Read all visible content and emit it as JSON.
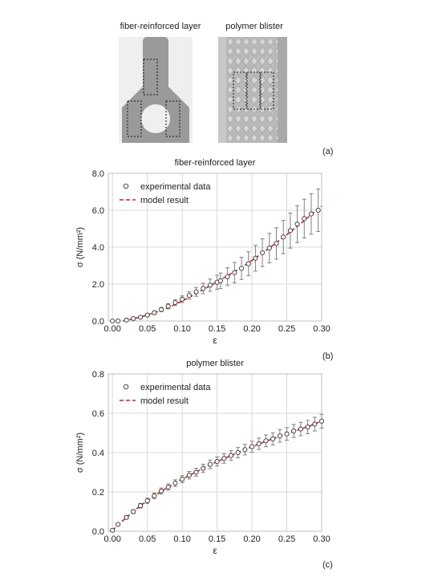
{
  "figure": {
    "image_a_left_title": "fiber-reinforced layer",
    "image_a_right_title": "polymer blister",
    "label_a": "(a)",
    "label_b": "(b)",
    "label_c": "(c)"
  },
  "colors": {
    "model_line": "#e02020",
    "marker_stroke": "#333333",
    "error_bar": "#808080",
    "grid": "#d9d9d9",
    "specimen_fill": "#9a9a9a",
    "blister_fill": "#b9b9b9"
  },
  "chart_data": [
    {
      "type": "scatter",
      "title": "fiber-reinforced layer",
      "xlabel": "ε",
      "ylabel": "σ (N/mm²)",
      "xlim": [
        0.0,
        0.3
      ],
      "ylim": [
        0.0,
        8.0
      ],
      "x_ticks": [
        "0.00",
        "0.05",
        "0.10",
        "0.15",
        "0.20",
        "0.25",
        "0.30"
      ],
      "y_ticks": [
        "0.0",
        "2.0",
        "4.0",
        "6.0",
        "8.0"
      ],
      "grid": true,
      "legend": "top-left",
      "series": [
        {
          "name": "experimental data",
          "marker": "open-circle",
          "x": [
            0.0,
            0.008,
            0.02,
            0.03,
            0.04,
            0.05,
            0.06,
            0.07,
            0.08,
            0.09,
            0.1,
            0.11,
            0.12,
            0.13,
            0.14,
            0.15,
            0.155,
            0.165,
            0.175,
            0.185,
            0.195,
            0.205,
            0.215,
            0.225,
            0.235,
            0.245,
            0.255,
            0.265,
            0.275,
            0.285,
            0.295
          ],
          "y": [
            0.0,
            0.0,
            0.05,
            0.13,
            0.2,
            0.32,
            0.45,
            0.62,
            0.8,
            1.0,
            1.18,
            1.38,
            1.58,
            1.76,
            1.94,
            2.1,
            2.18,
            2.4,
            2.62,
            2.85,
            3.1,
            3.4,
            3.7,
            3.95,
            4.2,
            4.55,
            4.9,
            5.25,
            5.55,
            5.8,
            6.0
          ],
          "error": [
            0.0,
            0.0,
            0.02,
            0.04,
            0.06,
            0.08,
            0.1,
            0.12,
            0.14,
            0.16,
            0.18,
            0.2,
            0.24,
            0.28,
            0.33,
            0.38,
            0.42,
            0.48,
            0.55,
            0.6,
            0.65,
            0.7,
            0.75,
            0.8,
            0.85,
            0.9,
            0.95,
            1.0,
            1.05,
            1.1,
            1.15
          ]
        },
        {
          "name": "model result",
          "line": "dashed",
          "x": [
            0.015,
            0.03,
            0.05,
            0.07,
            0.09,
            0.11,
            0.13,
            0.15,
            0.17,
            0.19,
            0.21,
            0.23,
            0.25,
            0.27,
            0.29,
            0.3
          ],
          "y": [
            0.0,
            0.12,
            0.32,
            0.58,
            0.9,
            1.28,
            1.7,
            2.12,
            2.56,
            3.02,
            3.55,
            4.1,
            4.68,
            5.28,
            5.92,
            6.22
          ]
        }
      ]
    },
    {
      "type": "scatter",
      "title": "polymer blister",
      "xlabel": "ε",
      "ylabel": "σ (N/mm²)",
      "xlim": [
        0.0,
        0.3
      ],
      "ylim": [
        0.0,
        0.8
      ],
      "x_ticks": [
        "0.00",
        "0.05",
        "0.10",
        "0.15",
        "0.20",
        "0.25",
        "0.30"
      ],
      "y_ticks": [
        "0.0",
        "0.2",
        "0.4",
        "0.6",
        "0.8"
      ],
      "grid": true,
      "legend": "top-left",
      "series": [
        {
          "name": "experimental data",
          "marker": "open-circle",
          "x": [
            0.0,
            0.008,
            0.02,
            0.03,
            0.04,
            0.05,
            0.06,
            0.07,
            0.08,
            0.09,
            0.1,
            0.11,
            0.12,
            0.13,
            0.14,
            0.15,
            0.16,
            0.17,
            0.18,
            0.19,
            0.2,
            0.21,
            0.22,
            0.23,
            0.24,
            0.25,
            0.26,
            0.27,
            0.28,
            0.29,
            0.3
          ],
          "y": [
            0.005,
            0.035,
            0.07,
            0.1,
            0.13,
            0.155,
            0.18,
            0.205,
            0.225,
            0.245,
            0.265,
            0.285,
            0.3,
            0.32,
            0.34,
            0.355,
            0.37,
            0.385,
            0.4,
            0.415,
            0.43,
            0.445,
            0.46,
            0.47,
            0.485,
            0.495,
            0.51,
            0.52,
            0.53,
            0.545,
            0.56
          ],
          "error": [
            0.0,
            0.005,
            0.008,
            0.01,
            0.012,
            0.013,
            0.014,
            0.015,
            0.016,
            0.017,
            0.018,
            0.019,
            0.02,
            0.021,
            0.022,
            0.023,
            0.024,
            0.025,
            0.026,
            0.027,
            0.028,
            0.029,
            0.03,
            0.031,
            0.032,
            0.032,
            0.033,
            0.034,
            0.034,
            0.035,
            0.035
          ]
        },
        {
          "name": "model result",
          "line": "dashed",
          "x": [
            0.0,
            0.02,
            0.04,
            0.06,
            0.08,
            0.1,
            0.12,
            0.14,
            0.16,
            0.18,
            0.2,
            0.22,
            0.24,
            0.26,
            0.28,
            0.3
          ],
          "y": [
            0.005,
            0.07,
            0.13,
            0.18,
            0.225,
            0.265,
            0.302,
            0.338,
            0.37,
            0.4,
            0.43,
            0.458,
            0.483,
            0.508,
            0.532,
            0.56
          ]
        }
      ]
    }
  ]
}
